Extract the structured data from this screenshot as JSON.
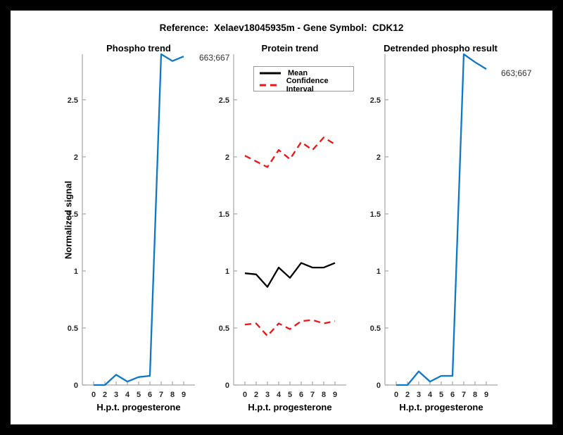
{
  "figure": {
    "title": "Reference:  Xelaev18045935m - Gene Symbol:  CDK12",
    "background_color": "#000000",
    "canvas_color": "#ffffff",
    "axis_color": "#a6a6a6",
    "tick_label_color": "#262626"
  },
  "chart_data": [
    {
      "type": "line",
      "title": "Phospho trend",
      "xlabel": "H.p.t. progesterone",
      "ylabel": "Normalized signal",
      "x_tick_labels": [
        "0",
        "2",
        "3",
        "4",
        "5",
        "6",
        "7",
        "8",
        "9"
      ],
      "yticks": [
        0,
        0.5,
        1,
        1.5,
        2,
        2.5
      ],
      "ytick_labels": [
        "0",
        "0.5",
        "1",
        "1.5",
        "2",
        "2.5"
      ],
      "ylim": [
        0,
        2.9
      ],
      "grid": false,
      "annotation": "663;667",
      "series": [
        {
          "name": "Phospho signal 663;667",
          "color": "#0e78c8",
          "style": "solid",
          "values": [
            0,
            0,
            0.09,
            0.03,
            0.07,
            0.08,
            2.9,
            2.84,
            2.88
          ]
        }
      ]
    },
    {
      "type": "line",
      "title": "Protein trend",
      "xlabel": "H.p.t. progesterone",
      "x_tick_labels": [
        "0",
        "2",
        "3",
        "4",
        "5",
        "6",
        "7",
        "8",
        "9"
      ],
      "yticks": [
        0,
        0.5,
        1,
        1.5,
        2,
        2.5
      ],
      "ytick_labels": [
        "0",
        "0.5",
        "1",
        "1.5",
        "2",
        "2.5"
      ],
      "ylim": [
        0,
        2.9
      ],
      "grid": false,
      "legend_position": "top-left-inside",
      "legend_items": [
        {
          "label": "Mean",
          "color": "#000000",
          "style": "solid"
        },
        {
          "label": "Confidence Interval",
          "color": "#ee1414",
          "style": "dashed"
        }
      ],
      "series": [
        {
          "name": "Confidence Interval upper",
          "color": "#ee1414",
          "style": "dashed",
          "values": [
            2.01,
            1.96,
            1.91,
            2.06,
            1.98,
            2.13,
            2.06,
            2.17,
            2.11
          ]
        },
        {
          "name": "Confidence Interval lower",
          "color": "#ee1414",
          "style": "dashed",
          "values": [
            0.53,
            0.54,
            0.43,
            0.54,
            0.49,
            0.56,
            0.57,
            0.54,
            0.56
          ]
        },
        {
          "name": "Mean",
          "color": "#000000",
          "style": "solid",
          "values": [
            0.98,
            0.97,
            0.86,
            1.03,
            0.94,
            1.07,
            1.03,
            1.03,
            1.07
          ]
        }
      ]
    },
    {
      "type": "line",
      "title": "Detrended phospho result",
      "xlabel": "H.p.t. progesterone",
      "x_tick_labels": [
        "0",
        "2",
        "3",
        "4",
        "5",
        "6",
        "7",
        "8",
        "9"
      ],
      "yticks": [
        0,
        0.5,
        1,
        1.5,
        2,
        2.5
      ],
      "ytick_labels": [
        "0",
        "0.5",
        "1",
        "1.5",
        "2",
        "2.5"
      ],
      "ylim": [
        0,
        2.9
      ],
      "grid": false,
      "annotation": "663;667",
      "series": [
        {
          "name": "Detrended phospho signal 663;667",
          "color": "#0e78c8",
          "style": "solid",
          "values": [
            0,
            0,
            0.12,
            0.03,
            0.08,
            0.08,
            2.9,
            2.83,
            2.77
          ]
        }
      ]
    }
  ]
}
